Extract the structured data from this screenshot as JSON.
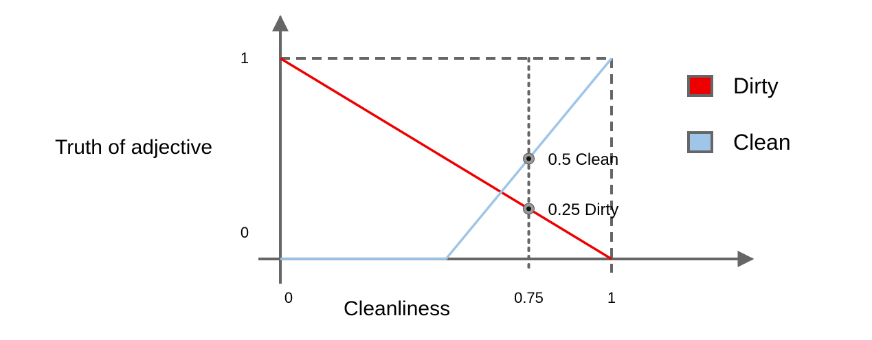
{
  "chart_data": {
    "type": "line",
    "xlabel": "Cleanliness",
    "ylabel": "Truth of adjective",
    "xlim": [
      0,
      1
    ],
    "ylim": [
      0,
      1
    ],
    "x_ticks": [
      {
        "value": 0,
        "label": "0"
      },
      {
        "value": 0.75,
        "label": "0.75"
      },
      {
        "value": 1,
        "label": "1"
      }
    ],
    "y_ticks": [
      {
        "value": 0,
        "label": "0"
      },
      {
        "value": 1,
        "label": "1"
      }
    ],
    "grid": false,
    "legend_position": "right",
    "series": [
      {
        "name": "Dirty",
        "color": "#ee0000",
        "points": [
          [
            0,
            1
          ],
          [
            1,
            0
          ]
        ]
      },
      {
        "name": "Clean",
        "color": "#9fc5e8",
        "points": [
          [
            0,
            0
          ],
          [
            0.5,
            0
          ],
          [
            1,
            1
          ]
        ]
      }
    ],
    "annotations": [
      {
        "x": 0.75,
        "y": 0.5,
        "label": "0.5 Clean"
      },
      {
        "x": 0.75,
        "y": 0.25,
        "label": "0.25 Dirty"
      }
    ],
    "reference_lines": [
      {
        "type": "horizontal",
        "value": 1,
        "style": "dashed"
      },
      {
        "type": "vertical",
        "value": 1,
        "style": "dashed"
      },
      {
        "type": "vertical",
        "value": 0.75,
        "style": "dotted"
      }
    ]
  },
  "colors": {
    "axis": "#666666",
    "dirty": "#ee0000",
    "clean": "#9fc5e8",
    "legend_border": "#666666"
  }
}
